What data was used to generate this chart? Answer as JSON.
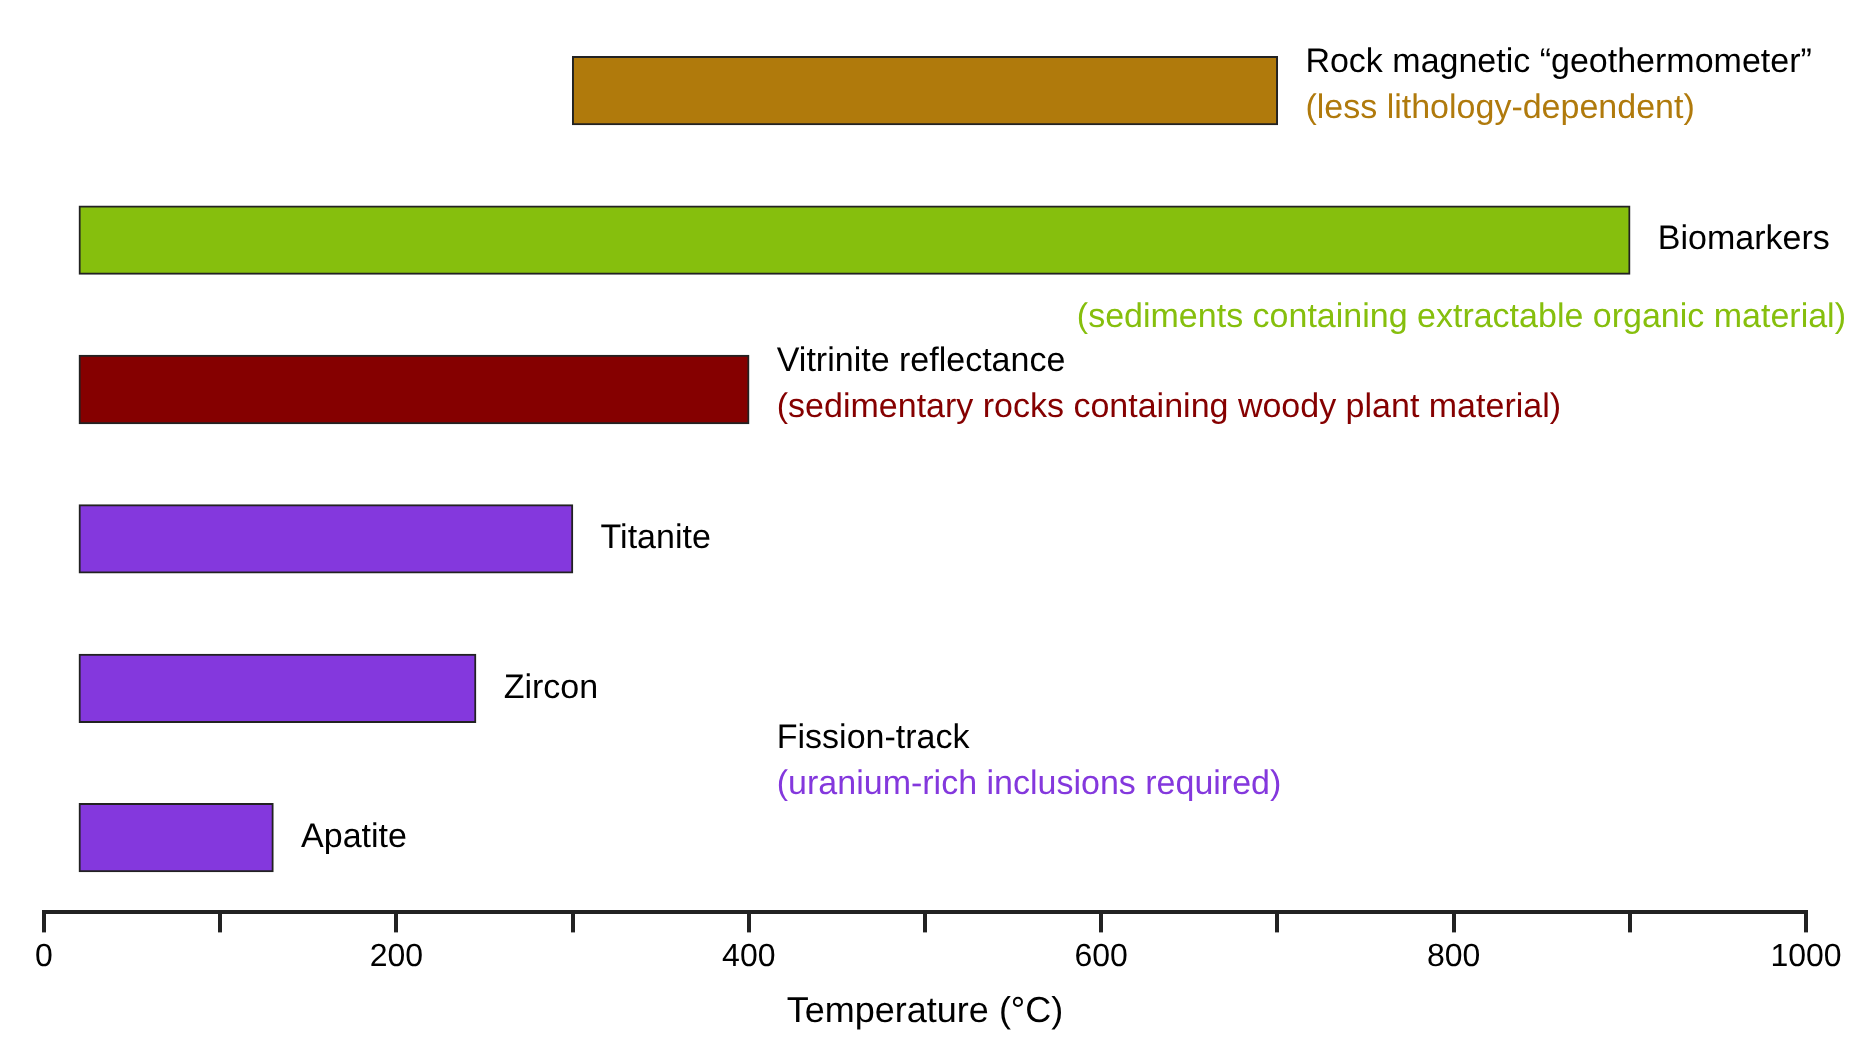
{
  "chart_data": {
    "type": "bar",
    "orientation": "horizontal",
    "xlabel": "Temperature (°C)",
    "categories": [
      "Rock magnetic “geothermometer”",
      "Biomarkers",
      "Vitrinite reflectance",
      "Titanite",
      "Zircon",
      "Apatite"
    ],
    "base": [
      300,
      20,
      20,
      20,
      20,
      20
    ],
    "values": [
      400,
      880,
      380,
      280,
      225,
      110
    ],
    "colors": [
      "#b07a0c",
      "#86bf0d",
      "#850000",
      "#8438dd",
      "#8438dd",
      "#8438dd"
    ],
    "xlim": [
      0,
      1000
    ],
    "xticks": [
      0,
      {
        "value": 100,
        "label": null
      },
      200,
      {
        "value": 300,
        "label": null
      },
      400,
      {
        "value": 500,
        "label": null
      },
      600,
      {
        "value": 700,
        "label": null
      },
      800,
      {
        "value": 900,
        "label": null
      },
      1000
    ],
    "tick_labels": "x",
    "grid": false,
    "legend": false,
    "annotations": [
      {
        "text": "(less lithology-dependent)",
        "x": 700,
        "y": "Rock magnetic “geothermometer”"
      },
      {
        "text": "(sediments containing extractable organic material)",
        "x": 900,
        "y": "Biomarkers"
      },
      {
        "text": "(sedimentary rocks containing woody plant material)",
        "x": 400,
        "y": "Vitrinite reflectance"
      },
      "Fission-track",
      "(uranium-rich inclusions required)"
    ]
  }
}
